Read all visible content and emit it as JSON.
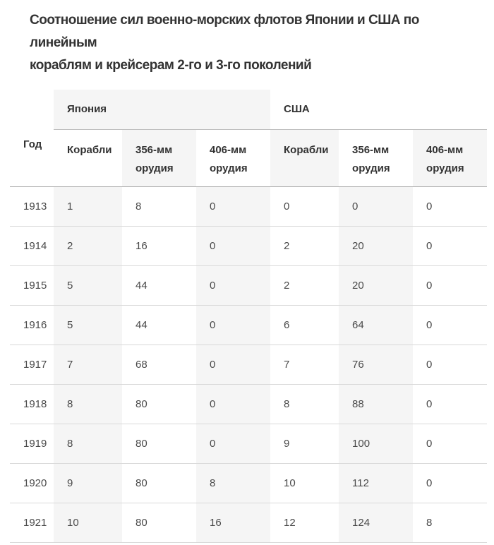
{
  "chart_data": {
    "type": "table",
    "title": "Соотношение сил военно-морских флотов Японии и США по линейным\nкораблям и крейсерам 2-го и 3-го поколений",
    "header": {
      "year_label": "Год",
      "groups": [
        {
          "label": "Япония",
          "colspan": 3
        },
        {
          "label": "США",
          "colspan": 3
        }
      ],
      "subcolumns": [
        "Корабли",
        "356-мм орудия",
        "406-мм орудия",
        "Корабли",
        "356-мм орудия",
        "406-мм орудия"
      ]
    },
    "rows": [
      [
        "1913",
        1,
        8,
        0,
        0,
        0,
        0
      ],
      [
        "1914",
        2,
        16,
        0,
        2,
        20,
        0
      ],
      [
        "1915",
        5,
        44,
        0,
        2,
        20,
        0
      ],
      [
        "1916",
        5,
        44,
        0,
        6,
        64,
        0
      ],
      [
        "1917",
        7,
        68,
        0,
        7,
        76,
        0
      ],
      [
        "1918",
        8,
        80,
        0,
        8,
        88,
        0
      ],
      [
        "1919",
        8,
        80,
        0,
        9,
        100,
        0
      ],
      [
        "1920",
        9,
        80,
        8,
        10,
        112,
        0
      ],
      [
        "1921",
        10,
        80,
        16,
        12,
        124,
        8
      ]
    ],
    "layout": {
      "grid": "horizontal-lines-only",
      "shaded_data_columns": [
        "Корабли (Япония)",
        "406-мм орудия (Япония)",
        "356-мм орудия (США)"
      ],
      "shaded_subheader_columns": [
        "356-мм орудия (Япония)",
        "Корабли (США)",
        "406-мм орудия (США)"
      ]
    }
  },
  "colors": {
    "shade_bg": "#f5f5f5",
    "title_text": "#333333",
    "header_text": "#333333",
    "cell_text": "#4a4a4a",
    "row_border": "#d9d9d9",
    "header_border": "#ababab",
    "group_border": "#bdbdbd",
    "page_bg": "#ffffff"
  }
}
